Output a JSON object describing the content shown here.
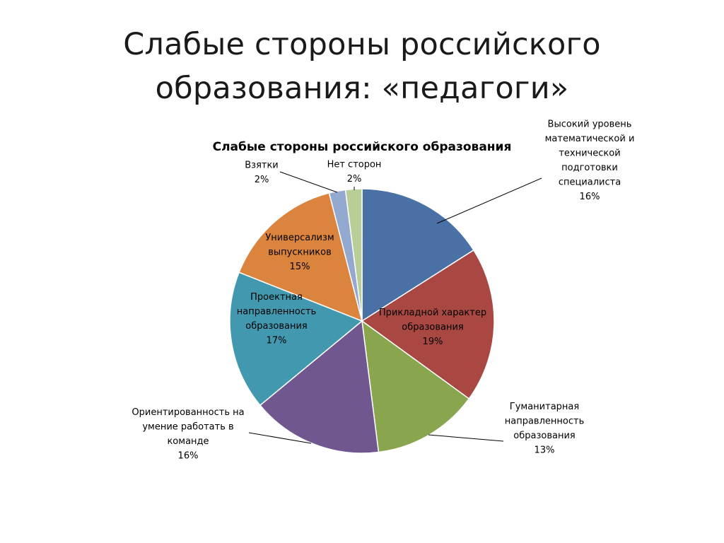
{
  "slide": {
    "title_line1": "Слабые стороны российского",
    "title_line2": "образования: «педагоги»"
  },
  "chart_data": {
    "type": "pie",
    "title": "Слабые стороны российского образования",
    "start_angle_deg": 0,
    "direction": "clockwise",
    "slices": [
      {
        "label": [
          "Высокий уровень",
          "математической и",
          "технической",
          "подготовки",
          "специалиста"
        ],
        "percent_label": "16%",
        "value": 16,
        "color": "#4a71a5"
      },
      {
        "label": [
          "Прикладной характер",
          "образования"
        ],
        "percent_label": "19%",
        "value": 19,
        "color": "#a94843"
      },
      {
        "label": [
          "Гуманитарная",
          "направленность",
          "образования"
        ],
        "percent_label": "13%",
        "value": 13,
        "color": "#89a54e"
      },
      {
        "label": [
          "Ориентированность на",
          "умение работать в",
          "команде"
        ],
        "percent_label": "16%",
        "value": 16,
        "color": "#70578f"
      },
      {
        "label": [
          "Проектная",
          "направленность",
          "образования"
        ],
        "percent_label": "17%",
        "value": 17,
        "color": "#4198af"
      },
      {
        "label": [
          "Универсализм",
          "выпускников"
        ],
        "percent_label": "15%",
        "value": 15,
        "color": "#db843d"
      },
      {
        "label": [
          "Взятки"
        ],
        "percent_label": "2%",
        "value": 2,
        "color": "#93a9cf"
      },
      {
        "label": [
          "Нет сторон"
        ],
        "percent_label": "2%",
        "value": 2,
        "color": "#b9cd96"
      }
    ]
  }
}
